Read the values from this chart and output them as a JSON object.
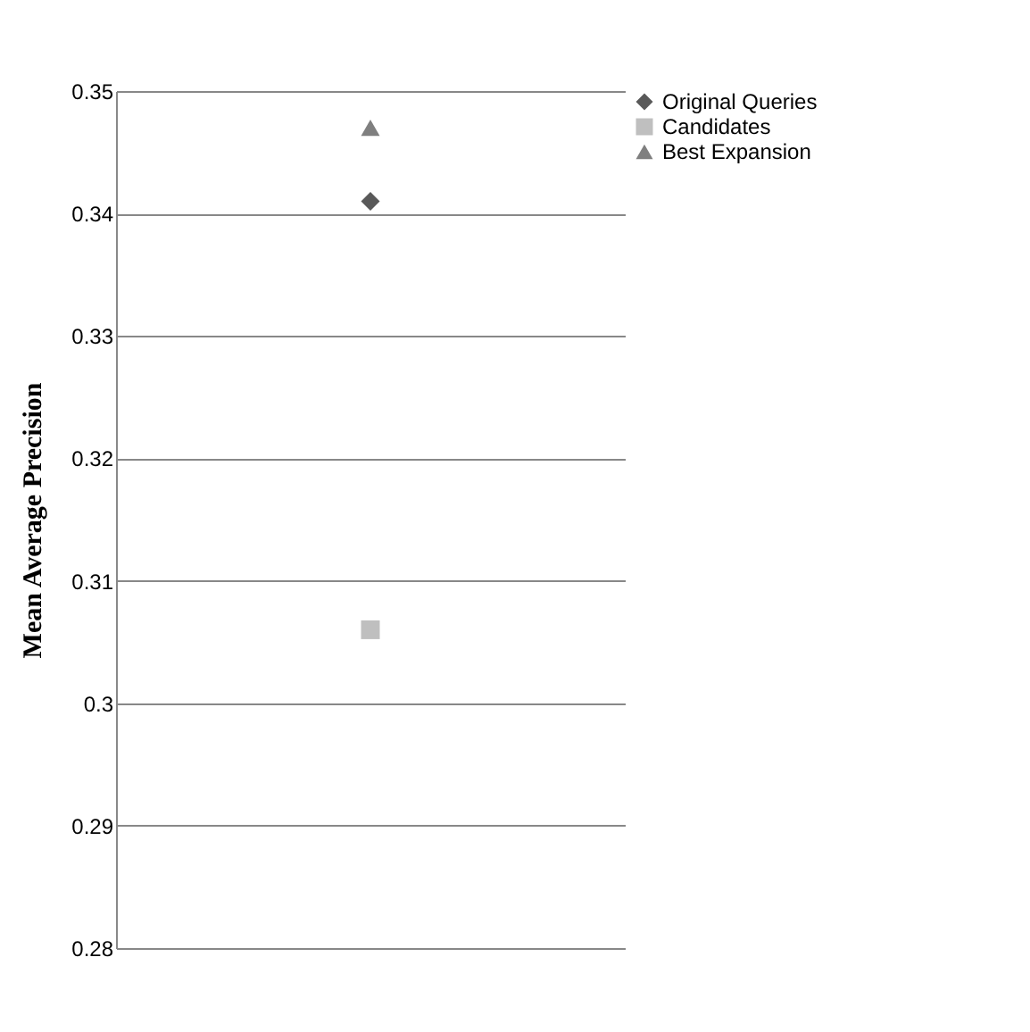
{
  "chart_data": {
    "type": "line",
    "ylabel": "Mean Average Precision",
    "categories": [
      null
    ],
    "series": [
      {
        "name": "Original Queries",
        "color": "#595959",
        "marker": "diamond",
        "values": [
          0.341
        ]
      },
      {
        "name": "Candidates",
        "color": "#bfbfbf",
        "marker": "square",
        "values": [
          0.306
        ]
      },
      {
        "name": "Best Expansion",
        "color": "#7f7f7f",
        "marker": "triangle",
        "values": [
          0.347
        ]
      }
    ],
    "ylim": [
      0.28,
      0.35
    ],
    "yticks": [
      0.28,
      0.29,
      0.3,
      0.31,
      0.32,
      0.33,
      0.34,
      0.35
    ],
    "grid": "y",
    "legend": "right",
    "tick_labels": "y"
  }
}
